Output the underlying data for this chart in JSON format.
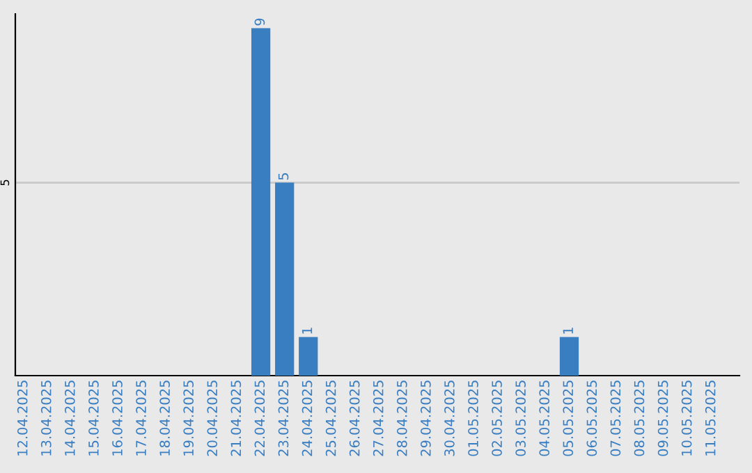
{
  "chart_data": {
    "type": "bar",
    "categories": [
      "12.04.2025",
      "13.04.2025",
      "14.04.2025",
      "15.04.2025",
      "16.04.2025",
      "17.04.2025",
      "18.04.2025",
      "19.04.2025",
      "20.04.2025",
      "21.04.2025",
      "22.04.2025",
      "23.04.2025",
      "24.04.2025",
      "25.04.2025",
      "26.04.2025",
      "27.04.2025",
      "28.04.2025",
      "29.04.2025",
      "30.04.2025",
      "01.05.2025",
      "02.05.2025",
      "03.05.2025",
      "04.05.2025",
      "05.05.2025",
      "06.05.2025",
      "07.05.2025",
      "08.05.2025",
      "09.05.2025",
      "10.05.2025",
      "11.05.2025"
    ],
    "values": [
      0,
      0,
      0,
      0,
      0,
      0,
      0,
      0,
      0,
      0,
      9,
      5,
      1,
      0,
      0,
      0,
      0,
      0,
      0,
      0,
      0,
      0,
      0,
      1,
      0,
      0,
      0,
      0,
      0,
      0
    ],
    "value_labels": [
      null,
      null,
      null,
      null,
      null,
      null,
      null,
      null,
      null,
      null,
      "9",
      "5",
      "1",
      null,
      null,
      null,
      null,
      null,
      null,
      null,
      null,
      null,
      null,
      "1",
      null,
      null,
      null,
      null,
      null,
      null
    ],
    "color": "#3a7ec2",
    "ylim": [
      0,
      9.37
    ],
    "yticks": [
      5
    ],
    "grid": "y"
  }
}
